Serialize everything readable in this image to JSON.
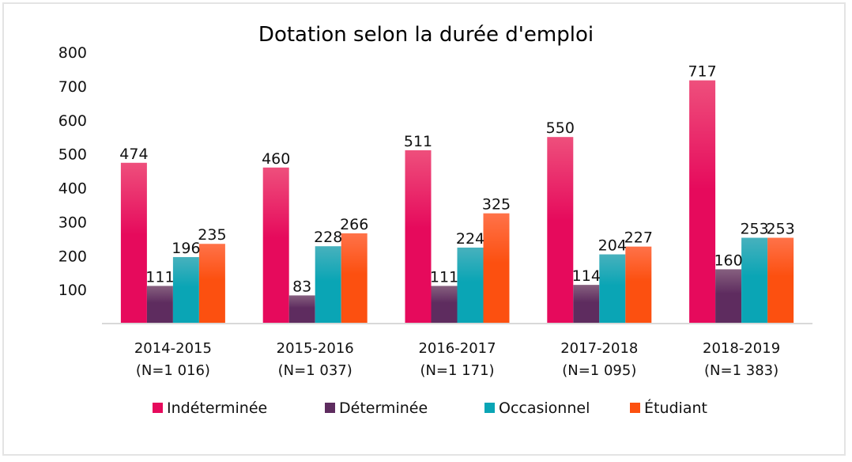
{
  "chart_data": {
    "type": "bar",
    "title": "Dotation selon la durée d'emploi",
    "xlabel": "",
    "ylabel": "",
    "ylim": [
      0,
      800
    ],
    "yticks": [
      100,
      200,
      300,
      400,
      500,
      600,
      700,
      800
    ],
    "grid": false,
    "legend_position": "bottom",
    "categories": [
      {
        "label": "2014-2015",
        "sublabel": "(N=1 016)"
      },
      {
        "label": "2015-2016",
        "sublabel": "(N=1 037)"
      },
      {
        "label": "2016-2017",
        "sublabel": "(N=1 171)"
      },
      {
        "label": "2017-2018",
        "sublabel": "(N=1 095)"
      },
      {
        "label": "2018-2019",
        "sublabel": "(N=1 383)"
      }
    ],
    "series": [
      {
        "name": "Indéterminée",
        "color": "#e60a5c",
        "color_top": "#ee4f7c",
        "values": [
          474,
          460,
          511,
          550,
          717
        ]
      },
      {
        "name": "Déterminée",
        "color": "#5e2c5f",
        "color_top": "#86607f",
        "values": [
          111,
          83,
          111,
          114,
          160
        ]
      },
      {
        "name": "Occasionnel",
        "color": "#0aa5b5",
        "color_top": "#47b1bd",
        "values": [
          196,
          228,
          224,
          204,
          253
        ]
      },
      {
        "name": "Étudiant",
        "color": "#fc5010",
        "color_top": "#ff7249",
        "values": [
          235,
          266,
          325,
          227,
          253
        ]
      }
    ]
  }
}
